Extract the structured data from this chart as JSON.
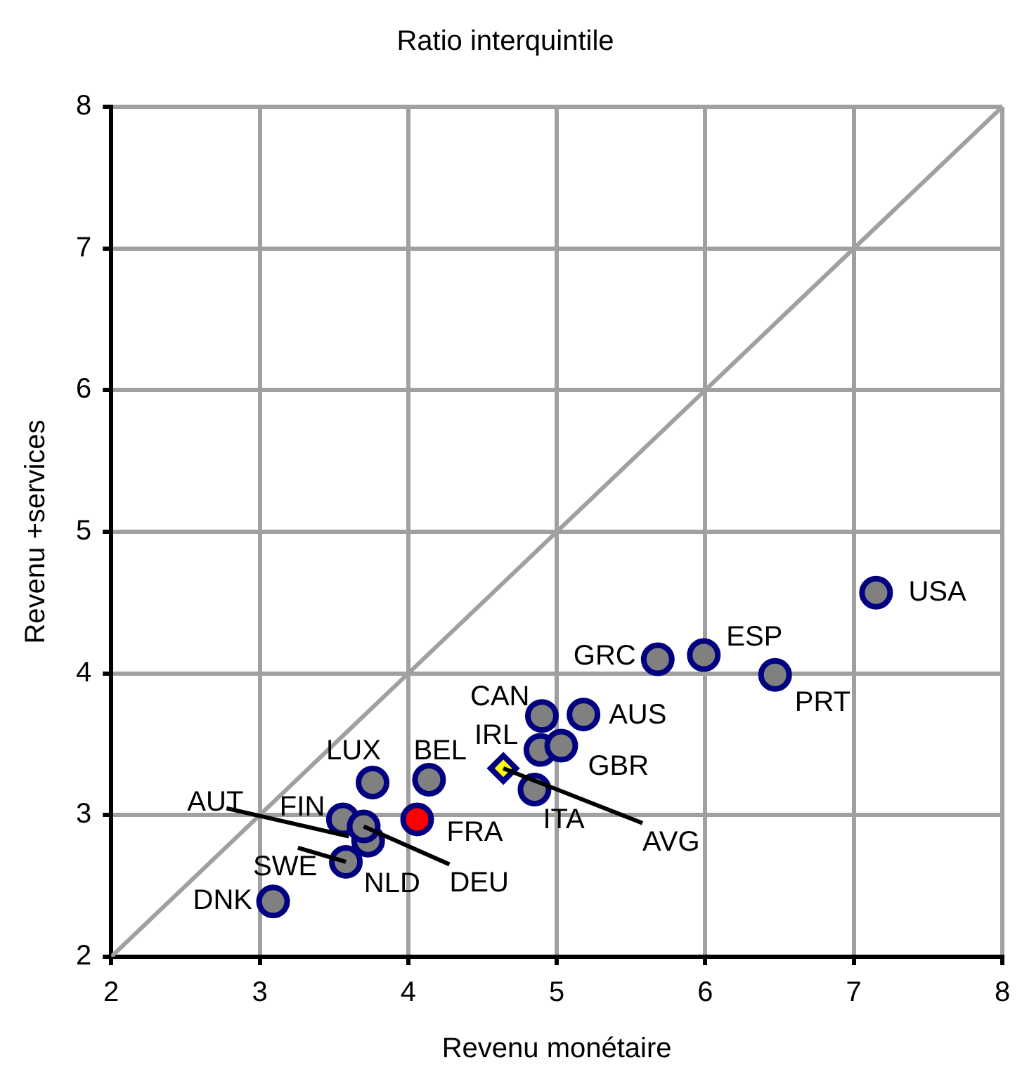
{
  "chart_data": {
    "type": "scatter",
    "title": "Ratio interquintile",
    "xlabel": "Revenu monétaire",
    "ylabel": "Revenu +services",
    "xlim": [
      2,
      8
    ],
    "ylim": [
      2,
      8
    ],
    "xticks": [
      2,
      3,
      4,
      5,
      6,
      7,
      8
    ],
    "yticks": [
      2,
      3,
      4,
      5,
      6,
      7,
      8
    ],
    "grid": true,
    "legend": false,
    "marker": "circle",
    "series": [
      {
        "color": "#808080",
        "x": [
          3.09,
          3.58,
          null,
          3.56,
          3.73,
          3.7,
          3.76,
          4.14,
          4.89,
          4.9,
          4.85,
          5.03,
          5.18,
          5.68,
          5.99,
          6.47,
          7.15
        ],
        "values": [
          2.39,
          2.67,
          null,
          2.97,
          2.82,
          2.92,
          3.23,
          3.25,
          3.46,
          3.7,
          3.18,
          3.49,
          3.71,
          4.1,
          4.13,
          3.99,
          4.57
        ]
      },
      {
        "color": "#ff0000",
        "x": [
          4.06
        ],
        "values": [
          2.97
        ]
      },
      {
        "color": "#ffff00",
        "marker": "diamond",
        "x": [
          4.64
        ],
        "values": [
          3.33
        ]
      },
      {
        "type": "line",
        "color": "#a0a0a0",
        "marker": "none",
        "x": [
          2,
          8
        ],
        "values": [
          2,
          8
        ]
      }
    ],
    "annotations": [
      {
        "text": "DNK",
        "x": 3.09,
        "y": 2.39
      },
      {
        "text": "SWE",
        "x": 3.58,
        "y": 2.67
      },
      {
        "text": "AUT",
        "x": 3.6,
        "y": 2.85
      },
      {
        "text": "FIN",
        "x": 3.56,
        "y": 2.97
      },
      {
        "text": "NLD",
        "x": 3.73,
        "y": 2.82
      },
      {
        "text": "DEU",
        "x": 3.7,
        "y": 2.92
      },
      {
        "text": "LUX",
        "x": 3.76,
        "y": 3.23
      },
      {
        "text": "BEL",
        "x": 4.14,
        "y": 3.25
      },
      {
        "text": "FRA",
        "x": 4.06,
        "y": 2.97
      },
      {
        "text": "IRL",
        "x": 4.89,
        "y": 3.46
      },
      {
        "text": "CAN",
        "x": 4.9,
        "y": 3.7
      },
      {
        "text": "ITA",
        "x": 4.85,
        "y": 3.18
      },
      {
        "text": "GBR",
        "x": 5.03,
        "y": 3.49
      },
      {
        "text": "AUS",
        "x": 5.18,
        "y": 3.71
      },
      {
        "text": "AVG",
        "x": 4.64,
        "y": 3.33
      },
      {
        "text": "GRC",
        "x": 5.68,
        "y": 4.1
      },
      {
        "text": "ESP",
        "x": 5.99,
        "y": 4.13
      },
      {
        "text": "PRT",
        "x": 6.47,
        "y": 3.99
      },
      {
        "text": "USA",
        "x": 7.15,
        "y": 4.57
      }
    ]
  }
}
